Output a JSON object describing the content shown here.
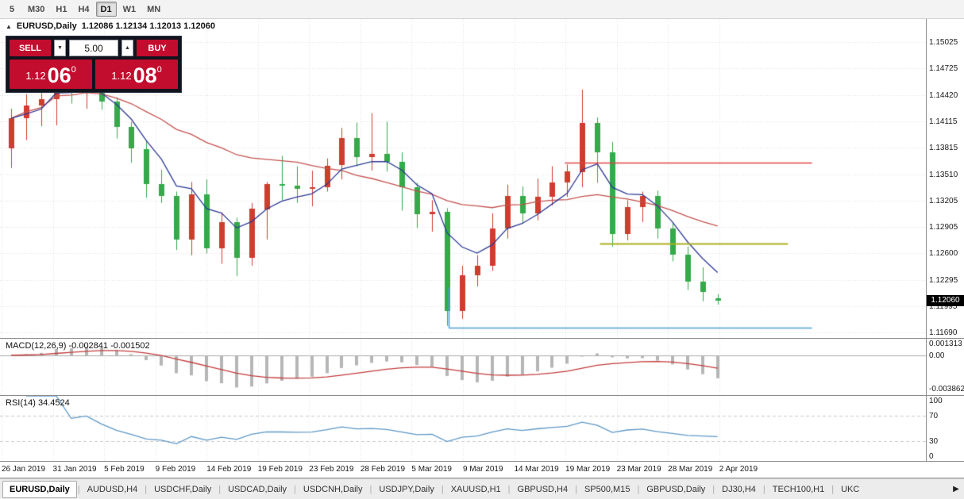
{
  "toolbar": {
    "timeframes": [
      "5",
      "M30",
      "H1",
      "H4",
      "D1",
      "W1",
      "MN"
    ],
    "active": "D1"
  },
  "chart": {
    "title": "EURUSD,Daily",
    "ohlc_text": "1.12086 1.12134 1.12013 1.12060"
  },
  "one_click": {
    "sell_label": "SELL",
    "buy_label": "BUY",
    "volume": "5.00",
    "toggle_icon": "▲",
    "volume_down_icon": "▼",
    "volume_up_icon": "▲",
    "bid": {
      "prefix": "1.12",
      "big": "06",
      "pip": "0"
    },
    "ask": {
      "prefix": "1.12",
      "big": "08",
      "pip": "0"
    }
  },
  "price_axis": {
    "ticks": [
      "1.15025",
      "1.14725",
      "1.14420",
      "1.14115",
      "1.13815",
      "1.13510",
      "1.13205",
      "1.12905",
      "1.12600",
      "1.12295",
      "1.11995",
      "1.11690"
    ],
    "current": "1.12060",
    "current_value": 1.1206
  },
  "chart_data": {
    "type": "candlestick",
    "symbol": "EURUSD",
    "timeframe": "Daily",
    "y_range": [
      1.1163,
      1.1529
    ],
    "columns": [
      "date",
      "open",
      "high",
      "low",
      "close"
    ],
    "candles": [
      [
        "25 Jan 2019",
        1.138,
        1.1426,
        1.1358,
        1.1415
      ],
      [
        "28 Jan 2019",
        1.1415,
        1.1443,
        1.139,
        1.143
      ],
      [
        "29 Jan 2019",
        1.143,
        1.145,
        1.1406,
        1.1437
      ],
      [
        "30 Jan 2019",
        1.1437,
        1.15,
        1.1407,
        1.1481
      ],
      [
        "31 Jan 2019",
        1.1481,
        1.1495,
        1.1432,
        1.1446
      ],
      [
        "1 Feb 2019",
        1.1446,
        1.1483,
        1.1426,
        1.1458
      ],
      [
        "4 Feb 2019",
        1.1458,
        1.1462,
        1.1425,
        1.1434
      ],
      [
        "5 Feb 2019",
        1.1434,
        1.1439,
        1.1392,
        1.1405
      ],
      [
        "6 Feb 2019",
        1.1405,
        1.1411,
        1.1364,
        1.138
      ],
      [
        "7 Feb 2019",
        1.138,
        1.139,
        1.1324,
        1.134
      ],
      [
        "8 Feb 2019",
        1.134,
        1.1356,
        1.1318,
        1.1326
      ],
      [
        "11 Feb 2019",
        1.1326,
        1.1331,
        1.1264,
        1.1276
      ],
      [
        "12 Feb 2019",
        1.1276,
        1.1342,
        1.1258,
        1.1328
      ],
      [
        "13 Feb 2019",
        1.1328,
        1.1345,
        1.126,
        1.1266
      ],
      [
        "14 Feb 2019",
        1.1266,
        1.1307,
        1.1248,
        1.1296
      ],
      [
        "15 Feb 2019",
        1.1296,
        1.1301,
        1.1234,
        1.1255
      ],
      [
        "18 Feb 2019",
        1.1255,
        1.1318,
        1.1246,
        1.1311
      ],
      [
        "19 Feb 2019",
        1.1311,
        1.1342,
        1.1276,
        1.134
      ],
      [
        "20 Feb 2019",
        1.134,
        1.1372,
        1.1321,
        1.1338
      ],
      [
        "21 Feb 2019",
        1.1338,
        1.136,
        1.1318,
        1.1334
      ],
      [
        "22 Feb 2019",
        1.1334,
        1.1355,
        1.1314,
        1.1336
      ],
      [
        "25 Feb 2019",
        1.1336,
        1.1369,
        1.1331,
        1.1361
      ],
      [
        "26 Feb 2019",
        1.1361,
        1.1404,
        1.1345,
        1.1392
      ],
      [
        "27 Feb 2019",
        1.1392,
        1.141,
        1.136,
        1.137
      ],
      [
        "28 Feb 2019",
        1.137,
        1.1421,
        1.1355,
        1.1374
      ],
      [
        "1 Mar 2019",
        1.1374,
        1.1411,
        1.1354,
        1.1365
      ],
      [
        "4 Mar 2019",
        1.1365,
        1.1376,
        1.1309,
        1.1336
      ],
      [
        "5 Mar 2019",
        1.1336,
        1.1341,
        1.1289,
        1.1305
      ],
      [
        "6 Mar 2019",
        1.1305,
        1.1321,
        1.1285,
        1.1308
      ],
      [
        "7 Mar 2019",
        1.1308,
        1.1312,
        1.1177,
        1.1194
      ],
      [
        "8 Mar 2019",
        1.1194,
        1.1246,
        1.1185,
        1.1235
      ],
      [
        "11 Mar 2019",
        1.1235,
        1.1258,
        1.1222,
        1.1246
      ],
      [
        "12 Mar 2019",
        1.1246,
        1.1306,
        1.124,
        1.1289
      ],
      [
        "13 Mar 2019",
        1.1289,
        1.1339,
        1.1277,
        1.1326
      ],
      [
        "14 Mar 2019",
        1.1326,
        1.1337,
        1.1294,
        1.1306
      ],
      [
        "15 Mar 2019",
        1.1306,
        1.1346,
        1.1298,
        1.1325
      ],
      [
        "18 Mar 2019",
        1.1325,
        1.136,
        1.1315,
        1.1341
      ],
      [
        "19 Mar 2019",
        1.1341,
        1.1362,
        1.1325,
        1.1354
      ],
      [
        "20 Mar 2019",
        1.1354,
        1.1448,
        1.1336,
        1.141
      ],
      [
        "21 Mar 2019",
        1.141,
        1.1416,
        1.1341,
        1.1376
      ],
      [
        "22 Mar 2019",
        1.1376,
        1.1388,
        1.1268,
        1.1282
      ],
      [
        "25 Mar 2019",
        1.1282,
        1.1321,
        1.1275,
        1.1313
      ],
      [
        "26 Mar 2019",
        1.1313,
        1.1331,
        1.1296,
        1.1326
      ],
      [
        "27 Mar 2019",
        1.1326,
        1.1332,
        1.1277,
        1.1289
      ],
      [
        "28 Mar 2019",
        1.1289,
        1.1296,
        1.1251,
        1.1259
      ],
      [
        "29 Mar 2019",
        1.1259,
        1.1268,
        1.1218,
        1.1228
      ],
      [
        "1 Apr 2019",
        1.1228,
        1.1244,
        1.1205,
        1.1216
      ],
      [
        "2 Apr 2019",
        1.12086,
        1.12134,
        1.12013,
        1.1206
      ]
    ],
    "overlays": {
      "fast": {
        "method": "ema",
        "period": 5,
        "color": "#2d3a96"
      },
      "slow": {
        "method": "sma",
        "period": 20,
        "color": "#c4524e"
      }
    },
    "lines": [
      {
        "name": "resistance-line",
        "color": "#e04343",
        "price": 1.1364,
        "x1": 0.61,
        "x2": 0.877,
        "width": 1.4
      },
      {
        "name": "mid-level-line",
        "color": "#a9b021",
        "price": 1.1271,
        "x1": 0.648,
        "x2": 0.851,
        "width": 2
      },
      {
        "name": "support-line",
        "color": "#4e9fd4",
        "price": 1.1175,
        "x1": 0.4846,
        "x2": 0.877,
        "width": 1.6
      },
      {
        "name": "support-riser",
        "color": "#4e9fd4",
        "vertical": true,
        "x": 0.4846,
        "p1": 1.1221,
        "p2": 1.1175,
        "width": 1.6
      }
    ],
    "macd": {
      "label": "MACD(12,26,9)",
      "values_text": "-0.002841 -0.001502",
      "params": [
        12,
        26,
        9
      ],
      "range": [
        -0.0046,
        0.0019
      ],
      "axis": [
        {
          "v": 0.001313,
          "t": "0.001313"
        },
        {
          "v": 0,
          "t": "0.00"
        },
        {
          "v": -0.003862,
          "t": "-0.003862"
        }
      ]
    },
    "rsi": {
      "label": "RSI(14)",
      "value_text": "34.4524",
      "period": 14,
      "levels": [
        70,
        30
      ],
      "axis": [
        {
          "v": 100,
          "t": "100"
        },
        {
          "v": 70,
          "t": "70"
        },
        {
          "v": 30,
          "t": "30"
        },
        {
          "v": 0,
          "t": "0"
        }
      ]
    },
    "x_labels": [
      "26 Jan 2019",
      "31 Jan 2019",
      "5 Feb 2019",
      "9 Feb 2019",
      "14 Feb 2019",
      "19 Feb 2019",
      "23 Feb 2019",
      "28 Feb 2019",
      "5 Mar 2019",
      "9 Mar 2019",
      "14 Mar 2019",
      "19 Mar 2019",
      "23 Mar 2019",
      "28 Mar 2019",
      "2 Apr 2019"
    ],
    "colors": {
      "bull_candle": "#cf3d2e",
      "bear_candle": "#36a94a",
      "grid": "#e0e0e0",
      "macd_histogram": "#b6b6b6",
      "macd_signal": "#c43b3b",
      "rsi_line": "#5d97c6"
    }
  },
  "tabs": {
    "scroll_right": "▶",
    "items": [
      {
        "label": "EURUSD,Daily",
        "active": true
      },
      {
        "label": "AUDUSD,H4"
      },
      {
        "label": "USDCHF,Daily"
      },
      {
        "label": "USDCAD,Daily"
      },
      {
        "label": "USDCNH,Daily"
      },
      {
        "label": "USDJPY,Daily"
      },
      {
        "label": "XAUUSD,H1"
      },
      {
        "label": "GBPUSD,H4"
      },
      {
        "label": "SP500,M15"
      },
      {
        "label": "GBPUSD,Daily"
      },
      {
        "label": "DJ30,H4"
      },
      {
        "label": "TECH100,H1"
      },
      {
        "label": "UKC"
      }
    ]
  }
}
